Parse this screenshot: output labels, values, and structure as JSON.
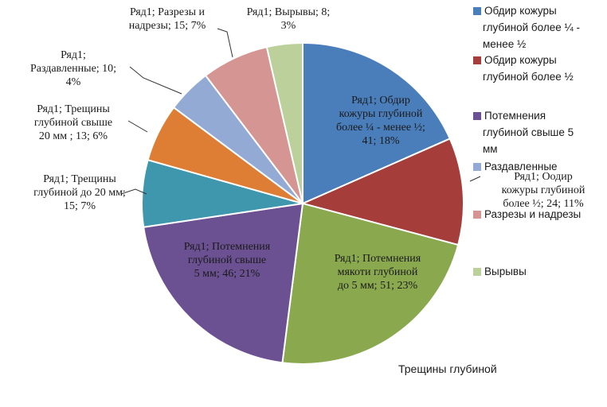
{
  "chart_data": {
    "type": "pie",
    "series_name": "Ряд1",
    "categories": [
      "Обдир кожуры глубиной более ¼ - менее ½",
      "Обдир кожуры глубиной более ½",
      "Потемнения мякоти глубиной до 5 мм",
      "Потемнения глубиной свыше 5 мм",
      "Трещины глубиной до 20 мм",
      "Трещины глубиной свыше 20 мм",
      "Раздавленные",
      "Разрезы и надрезы",
      "Вырывы"
    ],
    "values": [
      41,
      24,
      51,
      46,
      15,
      13,
      10,
      15,
      8
    ],
    "percents": [
      18,
      11,
      23,
      21,
      7,
      6,
      4,
      7,
      3
    ],
    "colors": [
      "#4a7ebb",
      "#a53d3a",
      "#8aa84e",
      "#6b5192",
      "#3f97ae",
      "#de7e35",
      "#93abd4",
      "#d49593",
      "#bbd09a"
    ],
    "data_labels": [
      [
        "Ряд1; Обдир",
        "кожуры глубиной",
        "более ¼ -   менее ½;",
        "41; 18%"
      ],
      [
        "Ряд1; Оодир",
        "кожуры глубиной",
        "более ½; 24; 11%"
      ],
      [
        "Ряд1; Потемнения",
        "мякоти глубиной",
        "до 5 мм; 51; 23%"
      ],
      [
        "Ряд1; Потемнения",
        "глубиной    свыше",
        "5 мм; 46; 21%"
      ],
      [
        "Ряд1; Трещины",
        "глубиной до 20 мм;",
        "15; 7%"
      ],
      [
        "Ряд1; Трещины",
        "глубиной свыше",
        "20 мм ; 13; 6%"
      ],
      [
        "Ряд1;",
        "Раздавленные; 10;",
        "4%"
      ],
      [
        "Ряд1; Разрезы и",
        "надрезы; 15; 7%"
      ],
      [
        "Ряд1; Вырывы; 8;",
        "3%"
      ]
    ],
    "legend": {
      "position": "right",
      "entries": [
        [
          "Обдир кожуры",
          "глубиной  более ¼ -",
          "менее ½"
        ],
        [
          "Обдир кожуры",
          "глубиной более ½"
        ],
        [
          "Потемнения",
          "глубиной    свыше 5",
          "мм"
        ],
        [
          "Раздавленные"
        ],
        [
          "Разрезы и надрезы"
        ],
        [
          "Вырывы"
        ]
      ],
      "colors": [
        "#4a7ebb",
        "#a53d3a",
        "#6b5192",
        "#93abd4",
        "#d49593",
        "#bbd09a"
      ]
    },
    "bottom_text": "Трещины глубиной"
  }
}
